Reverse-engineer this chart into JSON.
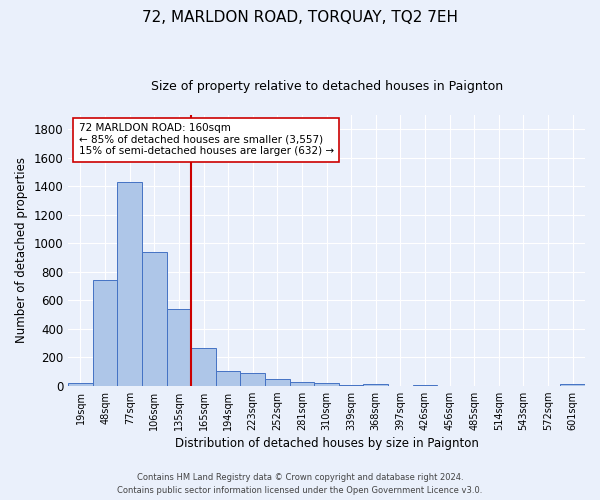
{
  "title": "72, MARLDON ROAD, TORQUAY, TQ2 7EH",
  "subtitle": "Size of property relative to detached houses in Paignton",
  "xlabel": "Distribution of detached houses by size in Paignton",
  "ylabel": "Number of detached properties",
  "categories": [
    "19sqm",
    "48sqm",
    "77sqm",
    "106sqm",
    "135sqm",
    "165sqm",
    "194sqm",
    "223sqm",
    "252sqm",
    "281sqm",
    "310sqm",
    "339sqm",
    "368sqm",
    "397sqm",
    "426sqm",
    "456sqm",
    "485sqm",
    "514sqm",
    "543sqm",
    "572sqm",
    "601sqm"
  ],
  "values": [
    20,
    740,
    1430,
    935,
    535,
    265,
    103,
    87,
    47,
    27,
    18,
    6,
    14,
    0,
    2,
    0,
    0,
    0,
    0,
    0,
    12
  ],
  "bar_color": "#aec6e8",
  "bar_edge_color": "#4472c4",
  "bg_color": "#eaf0fb",
  "grid_color": "#ffffff",
  "vline_color": "#cc0000",
  "annotation_text": "72 MARLDON ROAD: 160sqm\n← 85% of detached houses are smaller (3,557)\n15% of semi-detached houses are larger (632) →",
  "annotation_box_color": "#ffffff",
  "annotation_box_edge": "#cc0000",
  "footer1": "Contains HM Land Registry data © Crown copyright and database right 2024.",
  "footer2": "Contains public sector information licensed under the Open Government Licence v3.0.",
  "ylim": [
    0,
    1900
  ],
  "yticks": [
    0,
    200,
    400,
    600,
    800,
    1000,
    1200,
    1400,
    1600,
    1800
  ],
  "title_fontsize": 11,
  "subtitle_fontsize": 9,
  "vline_bin_index": 5
}
